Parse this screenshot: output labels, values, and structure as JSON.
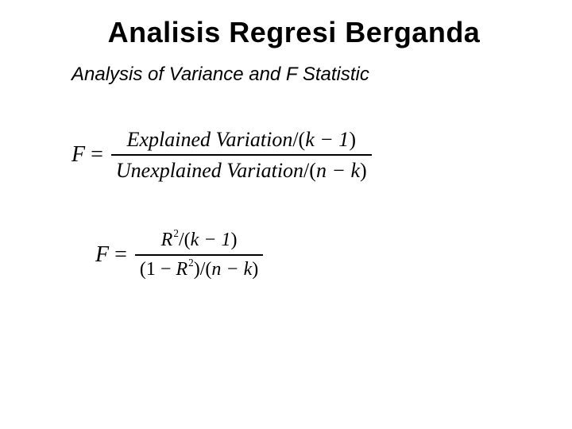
{
  "title": "Analisis Regresi Berganda",
  "subtitle": "Analysis of Variance and F Statistic",
  "colors": {
    "background": "#ffffff",
    "text": "#000000",
    "fraction_bar": "#000000"
  },
  "typography": {
    "title_family": "Arial",
    "title_size_pt": 36,
    "title_weight": "700",
    "subtitle_family": "Arial",
    "subtitle_style": "italic",
    "subtitle_size_pt": 24,
    "equation_family": "Times New Roman",
    "equation_style": "italic",
    "equation_size_pt": 26
  },
  "equations": {
    "eq1": {
      "lhs_var": "F",
      "eq_sign": " = ",
      "numerator": {
        "text_a": "Explained",
        "text_b": "Variation",
        "div": "/(",
        "inner": "k − 1",
        "close": ")"
      },
      "denominator": {
        "text_a": "Unexplained",
        "text_b": "Variation",
        "div": "/(",
        "inner": "n − k",
        "close": ")"
      }
    },
    "eq2": {
      "lhs_var": "F",
      "eq_sign": " = ",
      "numerator": {
        "R": "R",
        "sup": "2",
        "div": "/(",
        "inner": "k − 1",
        "close": ")"
      },
      "denominator": {
        "open": "(1 − ",
        "R": "R",
        "sup": "2",
        "close_inner": ")",
        "div": "/(",
        "inner": "n − k",
        "close": ")"
      }
    }
  }
}
